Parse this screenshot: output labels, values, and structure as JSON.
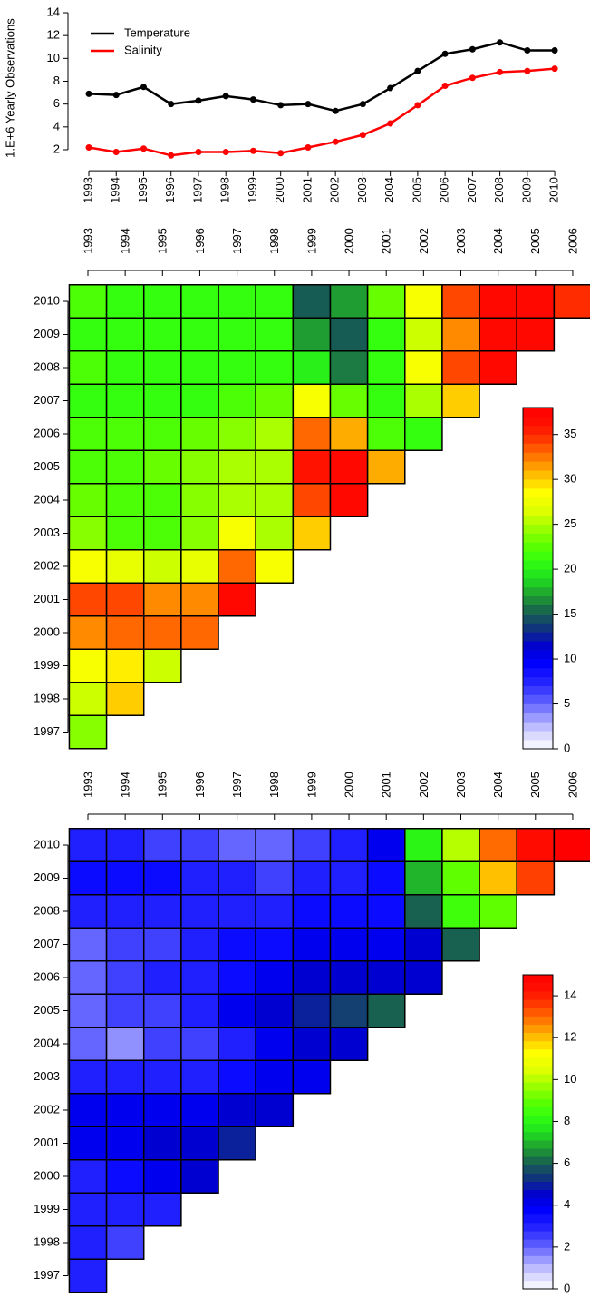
{
  "chart_data": [
    {
      "type": "line",
      "y_label": "1.E+6 Yearly Observations",
      "categories": [
        "1993",
        "1994",
        "1995",
        "1996",
        "1997",
        "1998",
        "1999",
        "2000",
        "2001",
        "2002",
        "2003",
        "2004",
        "2005",
        "2006",
        "2007",
        "2008",
        "2009",
        "2010"
      ],
      "series": [
        {
          "name": "Temperature",
          "color": "#000000",
          "values": [
            6.9,
            6.8,
            7.5,
            6.0,
            6.3,
            6.7,
            6.4,
            5.9,
            6.0,
            5.4,
            6.0,
            7.4,
            8.9,
            10.4,
            10.8,
            11.4,
            10.7,
            10.7
          ]
        },
        {
          "name": "Salinity",
          "color": "#ff0000",
          "values": [
            2.2,
            1.8,
            2.1,
            1.5,
            1.8,
            1.8,
            1.9,
            1.7,
            2.2,
            2.7,
            3.3,
            4.3,
            5.9,
            7.6,
            8.3,
            8.8,
            8.9,
            9.1
          ]
        }
      ],
      "ylim": [
        0.8,
        14
      ],
      "yticks": [
        2,
        4,
        6,
        8,
        10,
        12,
        14
      ],
      "legend": "top-left"
    },
    {
      "type": "heatmap",
      "x": [
        "1993",
        "1994",
        "1995",
        "1996",
        "1997",
        "1998",
        "1999",
        "2000",
        "2001",
        "2002",
        "2003",
        "2004",
        "2005",
        "2006"
      ],
      "y": [
        "2010",
        "2009",
        "2008",
        "2007",
        "2006",
        "2005",
        "2004",
        "2003",
        "2002",
        "2001",
        "2000",
        "1999",
        "1998",
        "1997"
      ],
      "z": [
        [
          22,
          21,
          21,
          21,
          21,
          21,
          15,
          17,
          23,
          28,
          34,
          37,
          37,
          35
        ],
        [
          21,
          21,
          21,
          21,
          21,
          21,
          17,
          15,
          21,
          26,
          32,
          37,
          37
        ],
        [
          22,
          21,
          21,
          21,
          21,
          21,
          20,
          16,
          21,
          28,
          34,
          37
        ],
        [
          21,
          21,
          21,
          21,
          22,
          23,
          28,
          23,
          21,
          25,
          30
        ],
        [
          22,
          22,
          22,
          23,
          24,
          25,
          33,
          31,
          22,
          21
        ],
        [
          22,
          22,
          23,
          24,
          25,
          25,
          36,
          37,
          31
        ],
        [
          23,
          22,
          22,
          24,
          25,
          25,
          34,
          37
        ],
        [
          24,
          22,
          22,
          24,
          28,
          25,
          30
        ],
        [
          28,
          27,
          26,
          27,
          33,
          28
        ],
        [
          34,
          34,
          32,
          32,
          37
        ],
        [
          32,
          33,
          33,
          33
        ],
        [
          28,
          29,
          26
        ],
        [
          26,
          30
        ],
        [
          24
        ]
      ],
      "zlim": [
        0,
        38
      ],
      "zticks": [
        0,
        5,
        10,
        15,
        20,
        25,
        30,
        35
      ],
      "colors": [
        "#ffffff",
        "#d0d0ff",
        "#9090ff",
        "#5050ff",
        "#2020ff",
        "#0000ff",
        "#0000d0",
        "#103080",
        "#186050",
        "#20a030",
        "#20e020",
        "#30ff10",
        "#60ff00",
        "#a0ff00",
        "#e0ff00",
        "#ffff00",
        "#ffc000",
        "#ff8000",
        "#ff4000",
        "#ff1000",
        "#ff0000"
      ]
    },
    {
      "type": "heatmap",
      "x": [
        "1993",
        "1994",
        "1995",
        "1996",
        "1997",
        "1998",
        "1999",
        "2000",
        "2001",
        "2002",
        "2003",
        "2004",
        "2005",
        "2006"
      ],
      "y": [
        "2010",
        "2009",
        "2008",
        "2007",
        "2006",
        "2005",
        "2004",
        "2003",
        "2002",
        "2001",
        "2000",
        "1999",
        "1998",
        "1997"
      ],
      "z": [
        [
          3,
          3,
          2.5,
          2.5,
          2,
          2,
          2.5,
          3,
          4,
          8,
          10,
          13,
          14.5,
          15
        ],
        [
          3.5,
          3.5,
          3.5,
          3,
          3,
          2.5,
          3,
          3,
          3.5,
          7,
          9,
          12,
          13.5
        ],
        [
          3,
          3,
          3,
          3,
          3,
          3,
          3.5,
          3.5,
          3.5,
          6,
          8.5,
          9
        ],
        [
          2,
          2.5,
          2.5,
          3,
          3.5,
          3.5,
          4,
          4,
          4,
          4.5,
          6
        ],
        [
          2,
          2.5,
          3,
          3,
          3.5,
          4,
          4.5,
          4.5,
          4.5,
          4.5
        ],
        [
          2,
          2.5,
          2.5,
          3,
          4,
          4.5,
          5,
          5.5,
          6
        ],
        [
          2,
          1.5,
          2.5,
          2.5,
          3,
          4,
          4.5,
          4.5
        ],
        [
          3,
          3,
          3,
          3,
          3.5,
          4,
          4
        ],
        [
          4,
          4,
          4,
          4,
          4.5,
          4.5
        ],
        [
          4,
          4,
          4.5,
          4.5,
          5
        ],
        [
          3,
          3.5,
          4,
          4.5
        ],
        [
          3,
          3,
          3
        ],
        [
          3,
          2.5
        ],
        [
          3
        ]
      ],
      "zlim": [
        0,
        15
      ],
      "zticks": [
        0,
        2,
        4,
        6,
        8,
        10,
        12,
        14
      ],
      "colors": [
        "#ffffff",
        "#d0d0ff",
        "#9090ff",
        "#5050ff",
        "#2020ff",
        "#0000ff",
        "#0000d0",
        "#103080",
        "#186050",
        "#20a030",
        "#20e020",
        "#30ff10",
        "#60ff00",
        "#a0ff00",
        "#e0ff00",
        "#ffff00",
        "#ffc000",
        "#ff8000",
        "#ff4000",
        "#ff1000",
        "#ff0000"
      ]
    }
  ]
}
